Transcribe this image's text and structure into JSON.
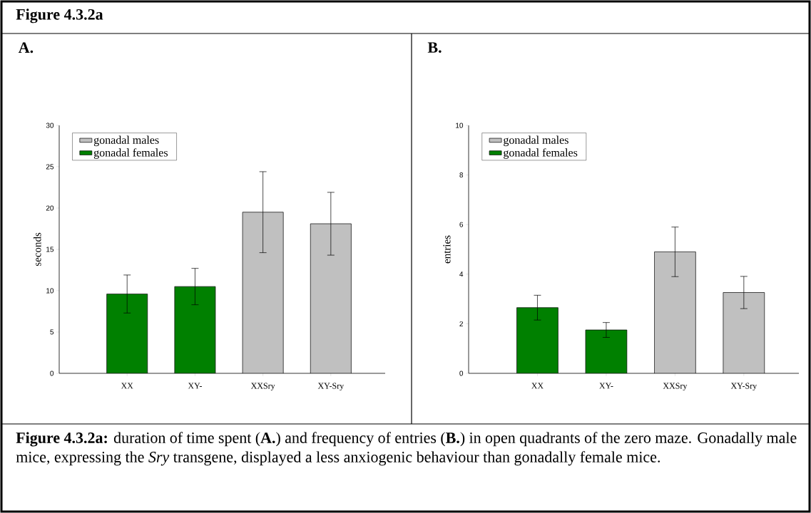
{
  "chart_data": [
    {
      "type": "bar",
      "title": "A.",
      "ylabel": "seconds",
      "annotations": [
        "Figure 4.3.2a"
      ],
      "categories": [
        "XX",
        "XY-",
        "XXSry",
        "XY-Sry"
      ],
      "series": [
        {
          "name": "gonadal males",
          "color": "#c0c0c0",
          "values": [
            null,
            null,
            19.5,
            18.1
          ],
          "errors": [
            null,
            null,
            4.9,
            3.8
          ]
        },
        {
          "name": "gonadal females",
          "color": "#008000",
          "values": [
            9.6,
            10.5,
            null,
            null
          ],
          "errors": [
            2.3,
            2.2,
            null,
            null
          ]
        }
      ],
      "ylim": [
        0,
        30
      ],
      "yticks": [
        0,
        5,
        10,
        15,
        20,
        25,
        30
      ],
      "legend": "top left"
    },
    {
      "type": "bar",
      "title": "B.",
      "ylabel": "entries",
      "annotations": [
        "**Figure 4.3.2a:** duration of time spent (**A.**) and frequency of entries (**B.**) in open quadrants of the zero maze. Gonadally male mice, expressing the *Sry* transgene, displayed a less anxiogenic behaviour than gonadally female mice."
      ],
      "categories": [
        "XX",
        "XY-",
        "XXSry",
        "XY-Sry"
      ],
      "series": [
        {
          "name": "gonadal males",
          "color": "#c0c0c0",
          "values": [
            null,
            null,
            4.9,
            3.26
          ],
          "errors": [
            null,
            null,
            1.0,
            0.65
          ]
        },
        {
          "name": "gonadal females",
          "color": "#008000",
          "values": [
            2.65,
            1.75,
            null,
            null
          ],
          "errors": [
            0.5,
            0.3,
            null,
            null
          ]
        }
      ],
      "ylim": [
        0,
        10
      ],
      "yticks": [
        0,
        2,
        4,
        6,
        8,
        10
      ],
      "legend": "top left"
    }
  ]
}
